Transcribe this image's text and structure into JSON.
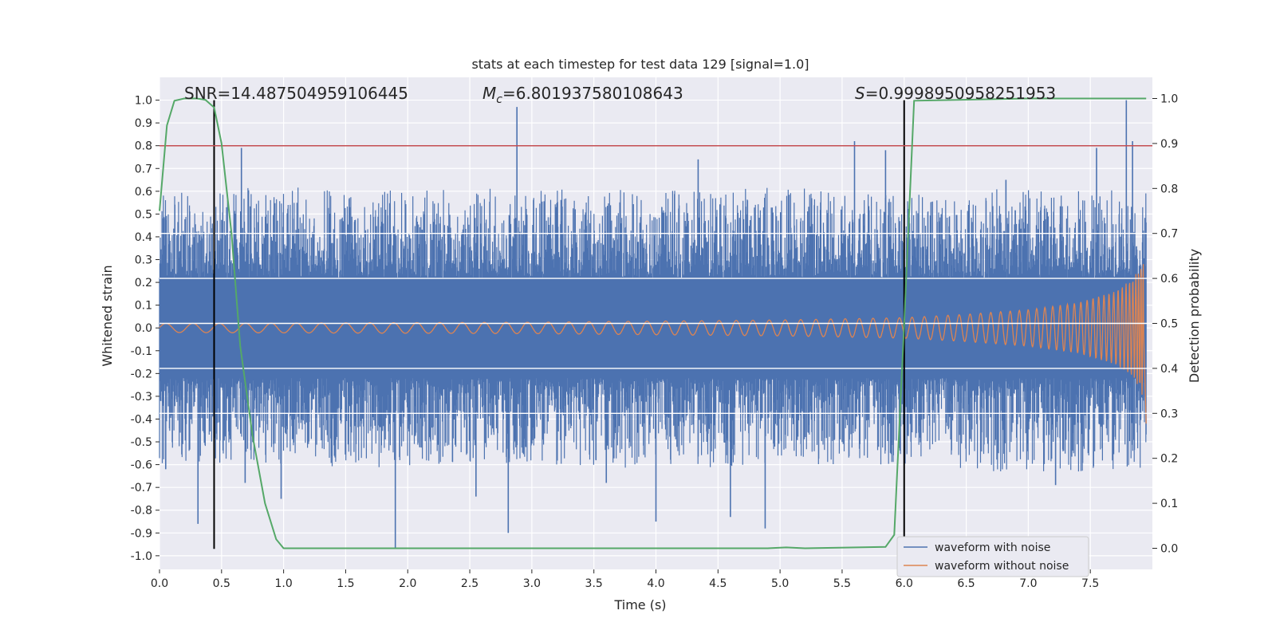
{
  "chart_data": {
    "type": "line",
    "title": "stats at each timestep for test data 129 [signal=1.0]",
    "xlabel": "Time (s)",
    "ylabel": "Whitened strain",
    "ylabel_right": "Detection probability",
    "xlim": [
      0,
      8
    ],
    "ylim": [
      -1.06,
      1.1
    ],
    "ylim_right": [
      -0.047,
      1.047
    ],
    "x_ticks": [
      0.0,
      0.5,
      1.0,
      1.5,
      2.0,
      2.5,
      3.0,
      3.5,
      4.0,
      4.5,
      5.0,
      5.5,
      6.0,
      6.5,
      7.0,
      7.5
    ],
    "x_tick_labels": [
      "0.0",
      "0.5",
      "1.0",
      "1.5",
      "2.0",
      "2.5",
      "3.0",
      "3.5",
      "4.0",
      "4.5",
      "5.0",
      "5.5",
      "6.0",
      "6.5",
      "7.0",
      "7.5"
    ],
    "y_ticks": [
      1.0,
      0.9,
      0.8,
      0.7,
      0.6,
      0.5,
      0.4,
      0.3,
      0.2,
      0.1,
      0.0,
      -0.1,
      -0.2,
      -0.3,
      -0.4,
      -0.5,
      -0.6,
      -0.7,
      -0.8,
      -0.9,
      -1.0
    ],
    "y_tick_labels": [
      "1.0",
      "0.9",
      "0.8",
      "0.7",
      "0.6",
      "0.5",
      "0.4",
      "0.3",
      "0.2",
      "0.1",
      "0.0",
      "-0.1",
      "-0.2",
      "-0.3",
      "-0.4",
      "-0.5",
      "-0.6",
      "-0.7",
      "-0.8",
      "-0.9",
      "-1.0"
    ],
    "y2_ticks": [
      1.0,
      0.9,
      0.8,
      0.7,
      0.6,
      0.5,
      0.4,
      0.3,
      0.2,
      0.1,
      0.0
    ],
    "y2_tick_labels": [
      "1.0",
      "0.9",
      "0.8",
      "0.7",
      "0.6",
      "0.5",
      "0.4",
      "0.3",
      "0.2",
      "0.1",
      "0.0"
    ],
    "stats": {
      "snr_label": "SNR=14.487504959106445",
      "mc_symbol": "M",
      "mc_sub": "c",
      "mc_value": "=6.801937580108643",
      "s_symbol": "S",
      "s_value": "=0.9998950958251953"
    },
    "threshold": {
      "value": 0.8,
      "color": "#c44e52"
    },
    "vertical_markers": [
      0.44,
      6.0
    ],
    "series": [
      {
        "name": "waveform with noise",
        "color": "#4c72b0",
        "description_range": "Noise band spanning approx -0.4 to 0.4 with spikes up to 1.0 and down to -1.0 across 0–7.95 s",
        "spikes": [
          {
            "x": 0.05,
            "y": -0.62
          },
          {
            "x": 0.31,
            "y": -0.86
          },
          {
            "x": 0.66,
            "y": 0.79
          },
          {
            "x": 0.69,
            "y": -0.68
          },
          {
            "x": 0.98,
            "y": -0.75
          },
          {
            "x": 1.9,
            "y": -0.97
          },
          {
            "x": 2.55,
            "y": -0.74
          },
          {
            "x": 2.81,
            "y": -0.9
          },
          {
            "x": 2.88,
            "y": 0.97
          },
          {
            "x": 3.6,
            "y": -0.68
          },
          {
            "x": 4.0,
            "y": -0.85
          },
          {
            "x": 4.34,
            "y": 0.74
          },
          {
            "x": 4.6,
            "y": -0.83
          },
          {
            "x": 4.88,
            "y": -0.88
          },
          {
            "x": 5.6,
            "y": 0.82
          },
          {
            "x": 5.85,
            "y": 0.78
          },
          {
            "x": 6.82,
            "y": 0.65
          },
          {
            "x": 7.22,
            "y": -0.69
          },
          {
            "x": 7.55,
            "y": 0.79
          },
          {
            "x": 7.79,
            "y": 1.0
          },
          {
            "x": 7.84,
            "y": 0.82
          }
        ],
        "envelope_top": [
          {
            "x": 0.0,
            "y": 0.6
          },
          {
            "x": 1.0,
            "y": 0.62
          },
          {
            "x": 2.0,
            "y": 0.6
          },
          {
            "x": 3.0,
            "y": 0.62
          },
          {
            "x": 4.0,
            "y": 0.6
          },
          {
            "x": 5.0,
            "y": 0.62
          },
          {
            "x": 6.0,
            "y": 0.58
          },
          {
            "x": 7.0,
            "y": 0.62
          },
          {
            "x": 7.95,
            "y": 0.6
          }
        ],
        "envelope_bottom": [
          {
            "x": 0.0,
            "y": -0.6
          },
          {
            "x": 1.0,
            "y": -0.6
          },
          {
            "x": 2.0,
            "y": -0.62
          },
          {
            "x": 3.0,
            "y": -0.6
          },
          {
            "x": 4.0,
            "y": -0.62
          },
          {
            "x": 5.0,
            "y": -0.6
          },
          {
            "x": 6.0,
            "y": -0.6
          },
          {
            "x": 7.0,
            "y": -0.64
          },
          {
            "x": 7.95,
            "y": -0.62
          }
        ]
      },
      {
        "name": "waveform without noise",
        "color": "#dd8452",
        "amplitude_envelope": [
          {
            "x": 0.0,
            "y": 0.02
          },
          {
            "x": 3.0,
            "y": 0.025
          },
          {
            "x": 5.0,
            "y": 0.035
          },
          {
            "x": 6.0,
            "y": 0.045
          },
          {
            "x": 6.5,
            "y": 0.06
          },
          {
            "x": 7.0,
            "y": 0.08
          },
          {
            "x": 7.4,
            "y": 0.11
          },
          {
            "x": 7.7,
            "y": 0.16
          },
          {
            "x": 7.85,
            "y": 0.22
          },
          {
            "x": 7.92,
            "y": 0.3
          },
          {
            "x": 7.95,
            "y": -0.42
          }
        ]
      },
      {
        "name": "detection probability",
        "color": "#55a868",
        "axis": "right",
        "x": [
          0.0,
          0.06,
          0.12,
          0.2,
          0.3,
          0.37,
          0.44,
          0.5,
          0.58,
          0.65,
          0.75,
          0.85,
          0.94,
          1.0,
          2.0,
          4.9,
          5.05,
          5.2,
          5.85,
          5.92,
          6.0,
          6.08,
          7.0,
          7.95
        ],
        "y": [
          0.75,
          0.94,
          0.995,
          1.0,
          1.0,
          0.997,
          0.98,
          0.9,
          0.7,
          0.45,
          0.25,
          0.1,
          0.02,
          0.0,
          0.0,
          0.0,
          0.002,
          0.0,
          0.003,
          0.03,
          0.5,
          0.995,
          1.0,
          1.0
        ]
      }
    ],
    "legend": {
      "position": "lower-right",
      "entries": [
        {
          "label": "waveform with noise",
          "color": "#4c72b0"
        },
        {
          "label": "waveform without noise",
          "color": "#dd8452"
        }
      ]
    },
    "colors": {
      "plot_background": "#eaeaf2",
      "grid": "#ffffff",
      "marker_line": "#000000"
    }
  }
}
